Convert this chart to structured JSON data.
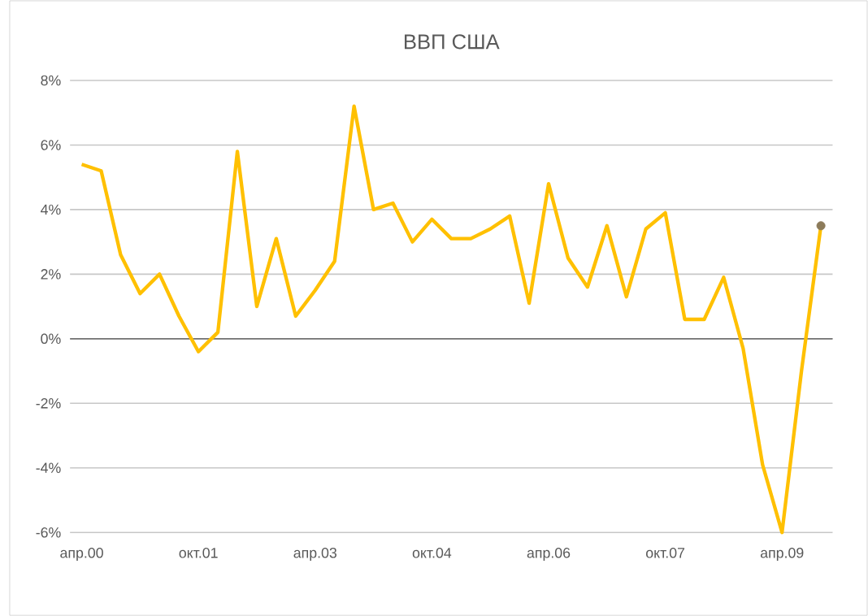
{
  "chart_data": {
    "type": "line",
    "title": "ВВП США",
    "categories": [
      "апр.00",
      null,
      null,
      null,
      null,
      null,
      "окт.01",
      null,
      null,
      null,
      null,
      null,
      "апр.03",
      null,
      null,
      null,
      null,
      null,
      "окт.04",
      null,
      null,
      null,
      null,
      null,
      "апр.06",
      null,
      null,
      null,
      null,
      null,
      "окт.07",
      null,
      null,
      null,
      null,
      null,
      "апр.09",
      null,
      null
    ],
    "series": [
      {
        "color": "#ffc000",
        "marker": "none",
        "values": [
          5.4,
          5.2,
          2.6,
          1.4,
          2.0,
          0.7,
          -0.4,
          0.2,
          5.8,
          1.0,
          3.1,
          0.7,
          1.5,
          2.4,
          7.2,
          4.0,
          4.2,
          3.0,
          3.7,
          3.1,
          3.1,
          3.4,
          3.8,
          1.1,
          4.8,
          2.5,
          1.6,
          3.5,
          1.3,
          3.4,
          3.9,
          0.6,
          0.6,
          1.9,
          -0.3,
          -3.9,
          -6.0,
          -1.0,
          3.5
        ]
      },
      {
        "type": "scatter",
        "color": "#8c7b5a",
        "marker": "circle",
        "values": [
          null,
          null,
          null,
          null,
          null,
          null,
          null,
          null,
          null,
          null,
          null,
          null,
          null,
          null,
          null,
          null,
          null,
          null,
          null,
          null,
          null,
          null,
          null,
          null,
          null,
          null,
          null,
          null,
          null,
          null,
          null,
          null,
          null,
          null,
          null,
          null,
          null,
          null,
          3.5
        ]
      }
    ],
    "ylim": [
      -6,
      8
    ],
    "yticks": [
      {
        "value": -6,
        "label": "-6%"
      },
      {
        "value": -4,
        "label": "-4%"
      },
      {
        "value": -2,
        "label": "-2%"
      },
      {
        "value": 0,
        "label": "0%"
      },
      {
        "value": 2,
        "label": "2%"
      },
      {
        "value": 4,
        "label": "4%"
      },
      {
        "value": 6,
        "label": "6%"
      },
      {
        "value": 8,
        "label": "8%"
      }
    ],
    "grid": "y"
  }
}
